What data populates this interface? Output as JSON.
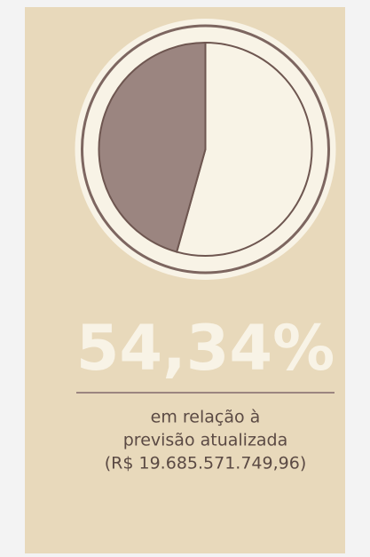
{
  "chart_data": {
    "type": "pie",
    "values": [
      54.34,
      45.66
    ],
    "value_labels": [
      "54,34%",
      null
    ],
    "colors": [
      "#f8f3e6",
      "#9b8580"
    ],
    "caption": [
      "em relação à",
      "previsão atualizada",
      "(R$ 19.685.571.749,96)"
    ]
  }
}
